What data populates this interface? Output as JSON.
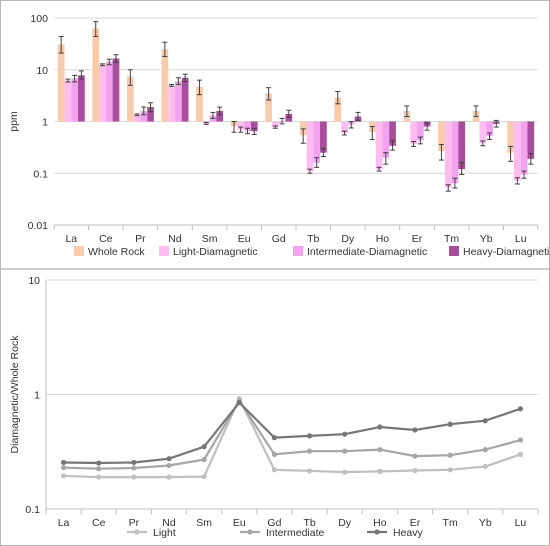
{
  "chart_data": [
    {
      "type": "bar",
      "title": "",
      "ylabel": "ppm",
      "yscale": "log",
      "ylim": [
        0.01,
        100
      ],
      "ytick_labels": [
        "100",
        "10",
        "1",
        "0.1",
        "0.01"
      ],
      "categories": [
        "La",
        "Ce",
        "Pr",
        "Nd",
        "Sm",
        "Eu",
        "Gd",
        "Tb",
        "Dy",
        "Ho",
        "Er",
        "Tm",
        "Yb",
        "Lu"
      ],
      "legend_position": "bottom",
      "error_bars": true,
      "series": [
        {
          "name": "Whole Rock",
          "color": "#f8cbad",
          "values": [
            31,
            63,
            7.4,
            25,
            4.7,
            0.82,
            3.5,
            0.55,
            2.9,
            0.63,
            1.6,
            0.27,
            1.6,
            0.25
          ],
          "errors_low": [
            21,
            44,
            5,
            18,
            3.3,
            0.62,
            2.6,
            0.38,
            2.2,
            0.45,
            1.25,
            0.18,
            1.25,
            0.17
          ],
          "errors_high": [
            44,
            85,
            10,
            34,
            6.3,
            1.0,
            4.5,
            0.72,
            3.8,
            0.8,
            2.0,
            0.36,
            2.0,
            0.33
          ]
        },
        {
          "name": "Light-Diamagnetic",
          "color": "#ffbdef",
          "values": [
            6.2,
            12.5,
            1.35,
            5.0,
            0.92,
            0.7,
            0.78,
            0.11,
            0.6,
            0.12,
            0.37,
            0.053,
            0.38,
            0.072
          ],
          "errors_low": [
            5.8,
            12,
            1.3,
            4.8,
            0.88,
            0.62,
            0.74,
            0.1,
            0.55,
            0.11,
            0.33,
            0.045,
            0.34,
            0.062
          ],
          "errors_high": [
            6.6,
            13,
            1.4,
            5.2,
            0.96,
            0.78,
            0.82,
            0.12,
            0.65,
            0.13,
            0.41,
            0.06,
            0.42,
            0.082
          ]
        },
        {
          "name": "Intermediate-Diamagnetic",
          "color": "#f2a2ee",
          "values": [
            6.8,
            14.3,
            1.6,
            6.0,
            1.3,
            0.66,
            1.0,
            0.16,
            0.88,
            0.2,
            0.43,
            0.065,
            0.52,
            0.095
          ],
          "errors_low": [
            5.8,
            12.5,
            1.35,
            5.2,
            1.15,
            0.58,
            0.9,
            0.13,
            0.75,
            0.15,
            0.37,
            0.052,
            0.45,
            0.08
          ],
          "errors_high": [
            7.8,
            16,
            1.9,
            7.0,
            1.5,
            0.74,
            1.15,
            0.2,
            1.0,
            0.25,
            0.5,
            0.08,
            0.6,
            0.11
          ]
        },
        {
          "name": "Heavy-Diamagnetic",
          "color": "#a84e9a",
          "values": [
            7.8,
            16.5,
            1.9,
            7.0,
            1.6,
            0.65,
            1.4,
            0.25,
            1.25,
            0.34,
            0.8,
            0.12,
            0.9,
            0.19
          ],
          "errors_low": [
            6.6,
            14,
            1.55,
            5.9,
            1.35,
            0.56,
            1.2,
            0.21,
            1.05,
            0.28,
            0.68,
            0.095,
            0.78,
            0.15
          ],
          "errors_high": [
            9.5,
            19.5,
            2.3,
            8.2,
            1.9,
            0.74,
            1.65,
            0.3,
            1.5,
            0.42,
            0.94,
            0.16,
            1.05,
            0.24
          ]
        }
      ]
    },
    {
      "type": "line",
      "title": "",
      "ylabel": "Diamagnetic/Whole Rock",
      "yscale": "log",
      "ylim": [
        0.1,
        10
      ],
      "ytick_labels": [
        "10",
        "1",
        "0.1"
      ],
      "categories": [
        "La",
        "Ce",
        "Pr",
        "Nd",
        "Sm",
        "Eu",
        "Gd",
        "Tb",
        "Dy",
        "Ho",
        "Er",
        "Tm",
        "Yb",
        "Lu"
      ],
      "legend_position": "bottom",
      "series": [
        {
          "name": "Light",
          "color": "#c0c0c0",
          "values": [
            0.195,
            0.19,
            0.19,
            0.19,
            0.192,
            0.92,
            0.22,
            0.215,
            0.21,
            0.213,
            0.217,
            0.22,
            0.235,
            0.3
          ]
        },
        {
          "name": "Intermediate",
          "color": "#a6a6a6",
          "values": [
            0.23,
            0.225,
            0.228,
            0.24,
            0.27,
            0.88,
            0.3,
            0.32,
            0.32,
            0.33,
            0.29,
            0.295,
            0.33,
            0.4
          ]
        },
        {
          "name": "Heavy",
          "color": "#767676",
          "values": [
            0.255,
            0.252,
            0.255,
            0.275,
            0.35,
            0.85,
            0.42,
            0.435,
            0.45,
            0.52,
            0.49,
            0.55,
            0.59,
            0.75
          ]
        }
      ]
    }
  ]
}
